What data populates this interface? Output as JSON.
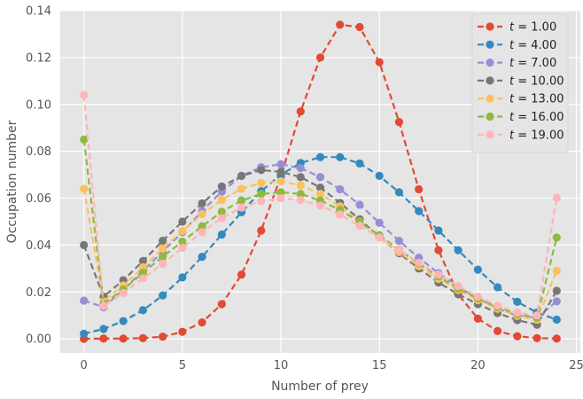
{
  "chart_data": {
    "type": "line",
    "title": "",
    "xlabel": "Number of prey",
    "ylabel": "Occupation number",
    "xlim": [
      -1.2,
      25.2
    ],
    "ylim": [
      -0.006,
      0.14
    ],
    "x_ticks": [
      0,
      5,
      10,
      15,
      20,
      25
    ],
    "y_ticks": [
      0.0,
      0.02,
      0.04,
      0.06,
      0.08,
      0.1,
      0.12,
      0.14
    ],
    "x_tick_labels": [
      "0",
      "5",
      "10",
      "15",
      "20",
      "25"
    ],
    "y_tick_labels": [
      "0.00",
      "0.02",
      "0.04",
      "0.06",
      "0.08",
      "0.10",
      "0.12",
      "0.14"
    ],
    "grid": true,
    "legend_position": "top-right",
    "line_style": "dashed",
    "marker": "circle",
    "x": [
      0,
      1,
      2,
      3,
      4,
      5,
      6,
      7,
      8,
      9,
      10,
      11,
      12,
      13,
      14,
      15,
      16,
      17,
      18,
      19,
      20,
      21,
      22,
      23,
      24
    ],
    "series": [
      {
        "name": "t = 1.00",
        "color": "#E24A33",
        "values": [
          0.0,
          0.0001,
          0.0001,
          0.0003,
          0.0009,
          0.003,
          0.007,
          0.0148,
          0.0274,
          0.0462,
          0.0693,
          0.097,
          0.12,
          0.134,
          0.133,
          0.118,
          0.0925,
          0.0638,
          0.0378,
          0.019,
          0.0086,
          0.0033,
          0.0011,
          0.0003,
          0.0001
        ]
      },
      {
        "name": "t = 4.00",
        "color": "#348ABD",
        "values": [
          0.0022,
          0.0042,
          0.0076,
          0.0122,
          0.0185,
          0.0262,
          0.035,
          0.0445,
          0.054,
          0.063,
          0.07,
          0.075,
          0.0775,
          0.0775,
          0.0748,
          0.0695,
          0.0625,
          0.0545,
          0.0462,
          0.0378,
          0.0295,
          0.022,
          0.0158,
          0.0112,
          0.0082
        ]
      },
      {
        "name": "t = 7.00",
        "color": "#988ED5",
        "values": [
          0.0163,
          0.0135,
          0.021,
          0.029,
          0.0372,
          0.0455,
          0.0545,
          0.0628,
          0.0695,
          0.0732,
          0.0745,
          0.0728,
          0.069,
          0.0638,
          0.0572,
          0.0495,
          0.0418,
          0.0346,
          0.028,
          0.0222,
          0.0172,
          0.013,
          0.0098,
          0.009,
          0.016
        ]
      },
      {
        "name": "t = 10.00",
        "color": "#777777",
        "values": [
          0.04,
          0.018,
          0.025,
          0.0332,
          0.0418,
          0.05,
          0.0578,
          0.065,
          0.0695,
          0.072,
          0.0712,
          0.069,
          0.0645,
          0.058,
          0.051,
          0.0435,
          0.0365,
          0.03,
          0.024,
          0.019,
          0.0148,
          0.011,
          0.008,
          0.006,
          0.0205
        ]
      },
      {
        "name": "t = 13.00",
        "color": "#FBC15E",
        "values": [
          0.064,
          0.016,
          0.0228,
          0.0305,
          0.0385,
          0.046,
          0.0532,
          0.0592,
          0.064,
          0.0665,
          0.0672,
          0.0655,
          0.0618,
          0.0565,
          0.05,
          0.0432,
          0.037,
          0.031,
          0.0256,
          0.0208,
          0.0165,
          0.0128,
          0.0098,
          0.0082,
          0.029
        ]
      },
      {
        "name": "t = 16.00",
        "color": "#8EBA42",
        "values": [
          0.085,
          0.015,
          0.021,
          0.0282,
          0.035,
          0.0415,
          0.048,
          0.0542,
          0.059,
          0.0618,
          0.0625,
          0.0618,
          0.059,
          0.055,
          0.0498,
          0.0442,
          0.038,
          0.0322,
          0.0266,
          0.0215,
          0.0172,
          0.0135,
          0.0105,
          0.009,
          0.0432
        ]
      },
      {
        "name": "t = 19.00",
        "color": "#FFB5B8",
        "values": [
          0.104,
          0.014,
          0.0195,
          0.0258,
          0.032,
          0.0388,
          0.0455,
          0.0515,
          0.056,
          0.0588,
          0.06,
          0.0592,
          0.0568,
          0.053,
          0.0482,
          0.0432,
          0.0378,
          0.0325,
          0.0274,
          0.0225,
          0.018,
          0.0142,
          0.0112,
          0.01,
          0.0602
        ]
      }
    ]
  }
}
